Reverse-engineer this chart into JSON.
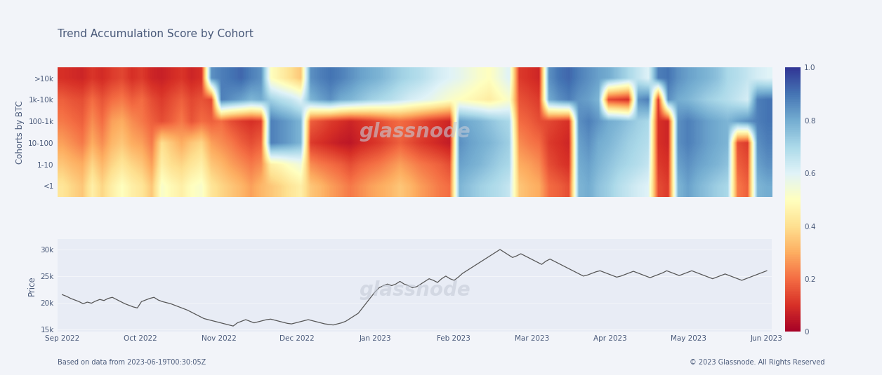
{
  "title": "Trend Accumulation Score by Cohort",
  "cohort_labels": [
    ">10k",
    "1k-10k",
    "100-1k",
    "10-100",
    "1-10",
    "<1"
  ],
  "ylabel_heatmap": "Cohorts by BTC",
  "ylabel_price": "Price",
  "colorbar_ticks": [
    0,
    0.2,
    0.4,
    0.6,
    0.8,
    1.0
  ],
  "price_yticks": [
    15000,
    20000,
    25000,
    30000
  ],
  "price_ytick_labels": [
    "15k",
    "20k",
    "25k",
    "30k"
  ],
  "x_tick_labels": [
    "Sep 2022",
    "Oct 2022",
    "Nov 2022",
    "Dec 2022",
    "Jan 2023",
    "Feb 2023",
    "Mar 2023",
    "Apr 2023",
    "May 2023",
    "Jun 2023"
  ],
  "footer_left": "Based on data from 2023-06-19T00:30:05Z",
  "footer_right": "© 2023 Glassnode. All Rights Reserved",
  "background_color": "#f2f4f9",
  "plot_bg_color": "#e8ecf5",
  "title_color": "#4a5a7a",
  "label_color": "#4a5a7a",
  "tick_color": "#4a5a7a",
  "watermark_color": "#c5ccd8",
  "line_color": "#555555",
  "heatmap": [
    [
      0.1,
      0.09,
      0.08,
      0.11,
      0.09,
      0.12,
      0.14,
      0.1,
      0.12,
      0.08,
      0.07,
      0.09,
      0.11,
      0.08,
      0.1,
      0.85,
      0.88,
      0.9,
      0.92,
      0.88,
      0.85,
      0.5,
      0.45,
      0.4,
      0.35,
      0.85,
      0.88,
      0.9,
      0.88,
      0.85,
      0.82,
      0.8,
      0.78,
      0.75,
      0.72,
      0.7,
      0.68,
      0.65,
      0.62,
      0.6,
      0.58,
      0.55,
      0.52,
      0.5,
      0.55,
      0.6,
      0.12,
      0.1,
      0.08,
      0.85,
      0.9,
      0.92,
      0.88,
      0.85,
      0.82,
      0.8,
      0.75,
      0.7,
      0.65,
      0.6,
      0.88,
      0.9,
      0.85,
      0.82,
      0.8,
      0.78,
      0.75,
      0.7,
      0.68,
      0.65,
      0.62,
      0.6
    ],
    [
      0.18,
      0.16,
      0.15,
      0.2,
      0.16,
      0.2,
      0.22,
      0.18,
      0.2,
      0.15,
      0.12,
      0.15,
      0.18,
      0.14,
      0.16,
      0.14,
      0.88,
      0.85,
      0.82,
      0.78,
      0.8,
      0.72,
      0.68,
      0.65,
      0.6,
      0.78,
      0.82,
      0.85,
      0.8,
      0.78,
      0.75,
      0.72,
      0.7,
      0.68,
      0.65,
      0.62,
      0.6,
      0.58,
      0.55,
      0.52,
      0.5,
      0.48,
      0.46,
      0.44,
      0.48,
      0.52,
      0.16,
      0.14,
      0.12,
      0.8,
      0.85,
      0.88,
      0.84,
      0.82,
      0.78,
      0.14,
      0.12,
      0.1,
      0.85,
      0.88,
      0.12,
      0.85,
      0.8,
      0.78,
      0.75,
      0.72,
      0.7,
      0.68,
      0.65,
      0.62,
      0.88,
      0.9
    ],
    [
      0.22,
      0.2,
      0.18,
      0.25,
      0.2,
      0.28,
      0.3,
      0.25,
      0.22,
      0.18,
      0.15,
      0.18,
      0.22,
      0.16,
      0.2,
      0.18,
      0.2,
      0.15,
      0.12,
      0.1,
      0.12,
      0.88,
      0.85,
      0.82,
      0.78,
      0.18,
      0.15,
      0.12,
      0.1,
      0.08,
      0.1,
      0.12,
      0.15,
      0.18,
      0.2,
      0.18,
      0.15,
      0.12,
      0.1,
      0.08,
      0.82,
      0.8,
      0.78,
      0.75,
      0.72,
      0.7,
      0.2,
      0.18,
      0.15,
      0.14,
      0.12,
      0.1,
      0.85,
      0.88,
      0.84,
      0.8,
      0.78,
      0.75,
      0.72,
      0.7,
      0.1,
      0.08,
      0.85,
      0.88,
      0.85,
      0.82,
      0.8,
      0.78,
      0.82,
      0.85,
      0.88,
      0.9
    ],
    [
      0.28,
      0.25,
      0.22,
      0.3,
      0.25,
      0.32,
      0.35,
      0.3,
      0.28,
      0.22,
      0.4,
      0.35,
      0.3,
      0.35,
      0.38,
      0.28,
      0.25,
      0.22,
      0.18,
      0.15,
      0.18,
      0.88,
      0.85,
      0.82,
      0.78,
      0.12,
      0.1,
      0.08,
      0.06,
      0.05,
      0.08,
      0.1,
      0.12,
      0.15,
      0.18,
      0.15,
      0.12,
      0.1,
      0.08,
      0.06,
      0.85,
      0.82,
      0.8,
      0.78,
      0.75,
      0.72,
      0.25,
      0.22,
      0.2,
      0.12,
      0.1,
      0.08,
      0.82,
      0.85,
      0.8,
      0.78,
      0.75,
      0.72,
      0.7,
      0.68,
      0.1,
      0.08,
      0.85,
      0.88,
      0.85,
      0.82,
      0.8,
      0.78,
      0.15,
      0.12,
      0.85,
      0.88
    ],
    [
      0.35,
      0.32,
      0.3,
      0.38,
      0.32,
      0.38,
      0.42,
      0.38,
      0.35,
      0.28,
      0.45,
      0.4,
      0.38,
      0.42,
      0.45,
      0.35,
      0.32,
      0.28,
      0.25,
      0.22,
      0.25,
      0.45,
      0.48,
      0.52,
      0.55,
      0.25,
      0.22,
      0.2,
      0.18,
      0.15,
      0.18,
      0.2,
      0.22,
      0.25,
      0.28,
      0.25,
      0.22,
      0.2,
      0.18,
      0.15,
      0.82,
      0.8,
      0.78,
      0.75,
      0.72,
      0.7,
      0.3,
      0.28,
      0.25,
      0.15,
      0.12,
      0.1,
      0.8,
      0.82,
      0.78,
      0.75,
      0.72,
      0.7,
      0.68,
      0.65,
      0.12,
      0.1,
      0.82,
      0.85,
      0.82,
      0.8,
      0.78,
      0.75,
      0.18,
      0.15,
      0.82,
      0.85
    ],
    [
      0.42,
      0.38,
      0.35,
      0.45,
      0.38,
      0.45,
      0.5,
      0.45,
      0.42,
      0.35,
      0.52,
      0.48,
      0.45,
      0.5,
      0.52,
      0.42,
      0.38,
      0.35,
      0.32,
      0.28,
      0.32,
      0.35,
      0.38,
      0.42,
      0.45,
      0.35,
      0.32,
      0.28,
      0.25,
      0.22,
      0.25,
      0.28,
      0.3,
      0.32,
      0.35,
      0.32,
      0.28,
      0.25,
      0.22,
      0.2,
      0.78,
      0.75,
      0.72,
      0.7,
      0.68,
      0.65,
      0.35,
      0.32,
      0.3,
      0.2,
      0.18,
      0.15,
      0.78,
      0.8,
      0.75,
      0.72,
      0.68,
      0.65,
      0.62,
      0.6,
      0.15,
      0.12,
      0.78,
      0.82,
      0.78,
      0.75,
      0.72,
      0.7,
      0.22,
      0.18,
      0.78,
      0.8
    ]
  ],
  "price_data": [
    21500,
    21200,
    20800,
    20500,
    20200,
    19800,
    20100,
    19900,
    20300,
    20600,
    20400,
    20800,
    21000,
    20600,
    20200,
    19800,
    19500,
    19200,
    19000,
    20200,
    20500,
    20800,
    21000,
    20500,
    20200,
    20000,
    19800,
    19500,
    19200,
    18900,
    18600,
    18200,
    17800,
    17400,
    17000,
    16800,
    16600,
    16400,
    16200,
    16000,
    15800,
    15600,
    16200,
    16500,
    16800,
    16500,
    16200,
    16400,
    16600,
    16800,
    16900,
    16700,
    16500,
    16300,
    16100,
    16000,
    16200,
    16400,
    16600,
    16800,
    16600,
    16400,
    16200,
    16000,
    15900,
    15800,
    16000,
    16200,
    16500,
    17000,
    17500,
    18000,
    19000,
    20000,
    21000,
    22000,
    22800,
    23200,
    23500,
    23200,
    23500,
    24000,
    23500,
    23200,
    22800,
    23000,
    23500,
    24000,
    24500,
    24200,
    23800,
    24500,
    25000,
    24500,
    24200,
    24800,
    25500,
    26000,
    26500,
    27000,
    27500,
    28000,
    28500,
    29000,
    29500,
    30000,
    29500,
    29000,
    28500,
    28800,
    29200,
    28800,
    28400,
    28000,
    27600,
    27200,
    27800,
    28200,
    27800,
    27400,
    27000,
    26600,
    26200,
    25800,
    25400,
    25000,
    25200,
    25500,
    25800,
    26000,
    25700,
    25400,
    25100,
    24800,
    25000,
    25300,
    25600,
    25900,
    25600,
    25300,
    25000,
    24700,
    25000,
    25300,
    25600,
    26000,
    25700,
    25400,
    25100,
    25400,
    25700,
    26000,
    25700,
    25400,
    25100,
    24800,
    24500,
    24800,
    25100,
    25400,
    25100,
    24800,
    24500,
    24200,
    24500,
    24800,
    25100,
    25400,
    25700,
    26000
  ]
}
